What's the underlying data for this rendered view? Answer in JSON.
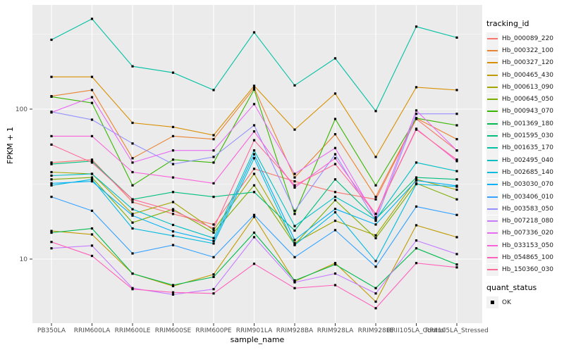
{
  "chart_data": {
    "type": "line",
    "xlabel": "sample_name",
    "ylabel": "FPKM + 1",
    "y_scale": "log10",
    "y_ticks": [
      10,
      100
    ],
    "y_minor_ticks": [
      31.6,
      316
    ],
    "ylim": [
      3.8,
      520
    ],
    "grid": "white-on-gray",
    "legend_position": "right",
    "marker": "black-square",
    "categories": [
      "PB350LA",
      "RRIM600LA",
      "RRIM600LE",
      "RRIM600SE",
      "RRIM600PE",
      "RRIM901LA",
      "RRIM928BA",
      "RRIM928LA",
      "RRIM928LE",
      "RRII105LA_Control",
      "RRII105LA_Stressed"
    ],
    "series": [
      {
        "name": "Hb_000089_220",
        "color": "#F8766D",
        "values": [
          44,
          46,
          24,
          20,
          17,
          40,
          33,
          28,
          25,
          86,
          53
        ]
      },
      {
        "name": "Hb_000322_100",
        "color": "#EA8331",
        "values": [
          122,
          134,
          47,
          66,
          63,
          138,
          35,
          68,
          26,
          87,
          63
        ]
      },
      {
        "name": "Hb_000327_120",
        "color": "#D89000",
        "values": [
          164,
          164,
          81,
          76,
          67,
          143,
          73,
          127,
          48,
          140,
          134
        ]
      },
      {
        "name": "Hb_000465_430",
        "color": "#C09B00",
        "values": [
          15.4,
          14.6,
          8.0,
          6.6,
          7.9,
          19.1,
          7.1,
          9.4,
          5.2,
          16.8,
          14.0
        ]
      },
      {
        "name": "Hb_000613_090",
        "color": "#A3A500",
        "values": [
          38,
          37,
          20,
          24,
          15.6,
          37,
          12.8,
          18,
          14.4,
          34,
          29
        ]
      },
      {
        "name": "Hb_000645_050",
        "color": "#7CAE00",
        "values": [
          34,
          35,
          17.5,
          21.5,
          15,
          31,
          12.5,
          24.7,
          13.8,
          32,
          25
        ]
      },
      {
        "name": "Hb_000943_070",
        "color": "#39B600",
        "values": [
          121,
          110,
          31,
          46,
          44,
          135,
          20,
          86,
          31,
          87,
          78
        ]
      },
      {
        "name": "Hb_001369_180",
        "color": "#00BB4E",
        "values": [
          15,
          16,
          8.0,
          6.7,
          7.6,
          15,
          7.2,
          9.2,
          6.4,
          11.8,
          9.2
        ]
      },
      {
        "name": "Hb_001595_030",
        "color": "#00BF7D",
        "values": [
          43,
          45,
          25,
          28,
          26,
          28,
          15.5,
          34,
          18.5,
          35,
          34
        ]
      },
      {
        "name": "Hb_001635_170",
        "color": "#00C1A3",
        "values": [
          290,
          400,
          193,
          175,
          134,
          325,
          144,
          218,
          97,
          355,
          300
        ]
      },
      {
        "name": "Hb_002495_040",
        "color": "#00BFC4",
        "values": [
          36,
          37,
          21.5,
          16.9,
          13.8,
          53,
          16.6,
          26,
          18.3,
          44,
          38.6
        ]
      },
      {
        "name": "Hb_002685_140",
        "color": "#00BAE0",
        "values": [
          31,
          34,
          16,
          14.3,
          12.7,
          47,
          12.4,
          20.5,
          9.7,
          31.6,
          30.4
        ]
      },
      {
        "name": "Hb_003030_070",
        "color": "#00B0F6",
        "values": [
          32,
          33,
          19.5,
          15.3,
          13.2,
          50,
          13.4,
          21.6,
          17,
          33.4,
          30.8
        ]
      },
      {
        "name": "Hb_003406_010",
        "color": "#35A2FF",
        "values": [
          26,
          21,
          10.9,
          12.4,
          10.3,
          19.7,
          10.3,
          15.6,
          8.9,
          22.4,
          19.7
        ]
      },
      {
        "name": "Hb_003583_050",
        "color": "#9590FF",
        "values": [
          96,
          85,
          59,
          43,
          48,
          78,
          21,
          50,
          18,
          93,
          93
        ]
      },
      {
        "name": "Hb_007218_080",
        "color": "#C77CFF",
        "values": [
          11.8,
          12.3,
          6.4,
          5.8,
          6.3,
          14,
          7.0,
          8.0,
          5.9,
          13.3,
          10.8
        ]
      },
      {
        "name": "Hb_007336_020",
        "color": "#E76BF3",
        "values": [
          95,
          120,
          44,
          53,
          53,
          108,
          37,
          55,
          19,
          98,
          53
        ]
      },
      {
        "name": "Hb_033153_050",
        "color": "#FA62DB",
        "values": [
          66,
          66,
          38,
          35,
          32,
          71,
          30,
          47,
          20,
          74,
          45
        ]
      },
      {
        "name": "Hb_054865_100",
        "color": "#FF62BC",
        "values": [
          13,
          10.5,
          6.3,
          6.0,
          5.9,
          9.3,
          6.4,
          6.7,
          4.7,
          9.4,
          8.8
        ]
      },
      {
        "name": "Hb_150360_030",
        "color": "#FF6A98",
        "values": [
          58,
          44,
          25,
          21,
          16,
          62,
          31,
          43,
          20,
          73,
          46
        ]
      }
    ]
  },
  "legend": {
    "tracking_title": "tracking_id",
    "quant_title": "quant_status",
    "quant_items": [
      {
        "label": "OK",
        "marker": "black-square"
      }
    ]
  },
  "colors": {
    "panel_bg": "#EBEBEB",
    "grid_major": "#FFFFFF",
    "grid_minor": "#F5F5F5",
    "axis_text": "#4D4D4D",
    "tick": "#333333",
    "marker": "#000000",
    "legend_key_bg": "#F2F2F2"
  }
}
